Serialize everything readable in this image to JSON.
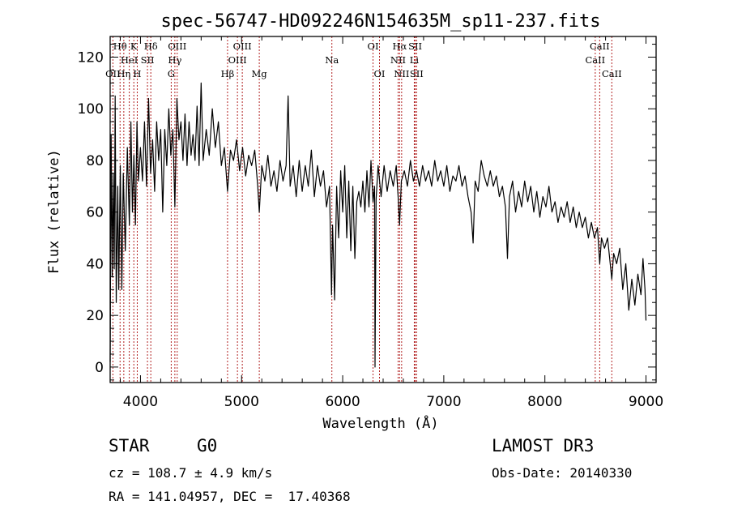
{
  "chart_data": {
    "type": "line",
    "title": "spec-56747-HD092246N154635M_sp11-237.fits",
    "xlabel": "Wavelength (Å)",
    "ylabel": "Flux (relative)",
    "xlim": [
      3700,
      9100
    ],
    "ylim": [
      -6,
      128
    ],
    "x_ticks": [
      4000,
      5000,
      6000,
      7000,
      8000,
      9000
    ],
    "y_ticks": [
      0,
      20,
      40,
      60,
      80,
      100,
      120
    ],
    "series": [
      {
        "name": "flux",
        "points": [
          [
            3700,
            2
          ],
          [
            3710,
            90
          ],
          [
            3720,
            35
          ],
          [
            3730,
            75
          ],
          [
            3740,
            38
          ],
          [
            3750,
            105
          ],
          [
            3760,
            25
          ],
          [
            3775,
            70
          ],
          [
            3785,
            30
          ],
          [
            3800,
            78
          ],
          [
            3815,
            30
          ],
          [
            3830,
            75
          ],
          [
            3850,
            45
          ],
          [
            3870,
            85
          ],
          [
            3890,
            55
          ],
          [
            3905,
            95
          ],
          [
            3920,
            60
          ],
          [
            3935,
            82
          ],
          [
            3950,
            55
          ],
          [
            3965,
            95
          ],
          [
            3980,
            72
          ],
          [
            4000,
            85
          ],
          [
            4020,
            72
          ],
          [
            4040,
            95
          ],
          [
            4060,
            70
          ],
          [
            4080,
            104
          ],
          [
            4100,
            75
          ],
          [
            4120,
            88
          ],
          [
            4140,
            68
          ],
          [
            4160,
            95
          ],
          [
            4180,
            80
          ],
          [
            4200,
            92
          ],
          [
            4220,
            60
          ],
          [
            4240,
            92
          ],
          [
            4260,
            78
          ],
          [
            4280,
            100
          ],
          [
            4300,
            82
          ],
          [
            4320,
            92
          ],
          [
            4340,
            62
          ],
          [
            4360,
            104
          ],
          [
            4380,
            88
          ],
          [
            4400,
            95
          ],
          [
            4420,
            80
          ],
          [
            4440,
            98
          ],
          [
            4460,
            78
          ],
          [
            4480,
            95
          ],
          [
            4500,
            82
          ],
          [
            4520,
            90
          ],
          [
            4540,
            80
          ],
          [
            4560,
            101
          ],
          [
            4580,
            78
          ],
          [
            4600,
            110
          ],
          [
            4620,
            80
          ],
          [
            4650,
            92
          ],
          [
            4680,
            82
          ],
          [
            4710,
            100
          ],
          [
            4740,
            85
          ],
          [
            4770,
            95
          ],
          [
            4800,
            78
          ],
          [
            4830,
            85
          ],
          [
            4861,
            68
          ],
          [
            4890,
            84
          ],
          [
            4920,
            80
          ],
          [
            4950,
            88
          ],
          [
            4980,
            76
          ],
          [
            5010,
            85
          ],
          [
            5040,
            74
          ],
          [
            5070,
            82
          ],
          [
            5100,
            78
          ],
          [
            5130,
            84
          ],
          [
            5160,
            70
          ],
          [
            5175,
            60
          ],
          [
            5200,
            78
          ],
          [
            5230,
            72
          ],
          [
            5260,
            82
          ],
          [
            5290,
            70
          ],
          [
            5320,
            76
          ],
          [
            5350,
            68
          ],
          [
            5380,
            80
          ],
          [
            5410,
            72
          ],
          [
            5440,
            78
          ],
          [
            5460,
            105
          ],
          [
            5480,
            70
          ],
          [
            5510,
            78
          ],
          [
            5540,
            66
          ],
          [
            5570,
            80
          ],
          [
            5600,
            68
          ],
          [
            5630,
            78
          ],
          [
            5660,
            70
          ],
          [
            5690,
            84
          ],
          [
            5720,
            66
          ],
          [
            5750,
            78
          ],
          [
            5780,
            70
          ],
          [
            5810,
            76
          ],
          [
            5840,
            62
          ],
          [
            5870,
            70
          ],
          [
            5890,
            28
          ],
          [
            5900,
            55
          ],
          [
            5920,
            26
          ],
          [
            5940,
            70
          ],
          [
            5960,
            50
          ],
          [
            5980,
            76
          ],
          [
            6000,
            60
          ],
          [
            6020,
            78
          ],
          [
            6040,
            50
          ],
          [
            6060,
            72
          ],
          [
            6080,
            45
          ],
          [
            6100,
            70
          ],
          [
            6120,
            42
          ],
          [
            6140,
            64
          ],
          [
            6160,
            68
          ],
          [
            6180,
            62
          ],
          [
            6200,
            72
          ],
          [
            6220,
            60
          ],
          [
            6240,
            76
          ],
          [
            6260,
            62
          ],
          [
            6280,
            80
          ],
          [
            6300,
            64
          ],
          [
            6315,
            70
          ],
          [
            6320,
            0
          ],
          [
            6330,
            65
          ],
          [
            6350,
            78
          ],
          [
            6380,
            66
          ],
          [
            6410,
            78
          ],
          [
            6440,
            68
          ],
          [
            6470,
            76
          ],
          [
            6500,
            70
          ],
          [
            6530,
            78
          ],
          [
            6550,
            65
          ],
          [
            6563,
            55
          ],
          [
            6580,
            72
          ],
          [
            6610,
            76
          ],
          [
            6640,
            70
          ],
          [
            6670,
            80
          ],
          [
            6700,
            72
          ],
          [
            6730,
            76
          ],
          [
            6760,
            70
          ],
          [
            6790,
            78
          ],
          [
            6820,
            72
          ],
          [
            6850,
            76
          ],
          [
            6880,
            70
          ],
          [
            6910,
            80
          ],
          [
            6940,
            72
          ],
          [
            6970,
            76
          ],
          [
            7000,
            70
          ],
          [
            7030,
            78
          ],
          [
            7060,
            68
          ],
          [
            7090,
            74
          ],
          [
            7120,
            72
          ],
          [
            7150,
            78
          ],
          [
            7180,
            70
          ],
          [
            7210,
            74
          ],
          [
            7240,
            66
          ],
          [
            7270,
            60
          ],
          [
            7290,
            48
          ],
          [
            7310,
            72
          ],
          [
            7340,
            68
          ],
          [
            7370,
            80
          ],
          [
            7400,
            74
          ],
          [
            7430,
            70
          ],
          [
            7460,
            76
          ],
          [
            7490,
            70
          ],
          [
            7520,
            74
          ],
          [
            7550,
            66
          ],
          [
            7580,
            70
          ],
          [
            7610,
            62
          ],
          [
            7630,
            42
          ],
          [
            7650,
            66
          ],
          [
            7680,
            72
          ],
          [
            7710,
            60
          ],
          [
            7740,
            68
          ],
          [
            7770,
            62
          ],
          [
            7800,
            72
          ],
          [
            7830,
            64
          ],
          [
            7860,
            70
          ],
          [
            7890,
            60
          ],
          [
            7920,
            68
          ],
          [
            7950,
            58
          ],
          [
            7980,
            66
          ],
          [
            8010,
            62
          ],
          [
            8040,
            70
          ],
          [
            8070,
            60
          ],
          [
            8100,
            64
          ],
          [
            8130,
            56
          ],
          [
            8160,
            62
          ],
          [
            8190,
            58
          ],
          [
            8220,
            64
          ],
          [
            8250,
            56
          ],
          [
            8280,
            62
          ],
          [
            8310,
            54
          ],
          [
            8340,
            60
          ],
          [
            8370,
            54
          ],
          [
            8400,
            58
          ],
          [
            8430,
            50
          ],
          [
            8460,
            56
          ],
          [
            8490,
            50
          ],
          [
            8520,
            54
          ],
          [
            8542,
            40
          ],
          [
            8560,
            50
          ],
          [
            8590,
            46
          ],
          [
            8620,
            50
          ],
          [
            8662,
            34
          ],
          [
            8680,
            44
          ],
          [
            8710,
            40
          ],
          [
            8740,
            46
          ],
          [
            8770,
            30
          ],
          [
            8800,
            40
          ],
          [
            8830,
            22
          ],
          [
            8860,
            34
          ],
          [
            8890,
            24
          ],
          [
            8920,
            36
          ],
          [
            8950,
            28
          ],
          [
            8970,
            42
          ],
          [
            8990,
            30
          ],
          [
            9000,
            18
          ]
        ]
      }
    ],
    "spectral_lines": [
      {
        "label": "OII",
        "wl": 3727,
        "row": 3
      },
      {
        "label": "Hθ",
        "wl": 3798,
        "row": 1
      },
      {
        "label": "Hη",
        "wl": 3835,
        "row": 3
      },
      {
        "label": "HeI",
        "wl": 3889,
        "row": 2
      },
      {
        "label": "K",
        "wl": 3934,
        "row": 1
      },
      {
        "label": "H",
        "wl": 3968,
        "row": 3
      },
      {
        "label": "SII",
        "wl": 4069,
        "row": 2
      },
      {
        "label": "Hδ",
        "wl": 4102,
        "row": 1
      },
      {
        "label": "G",
        "wl": 4304,
        "row": 3
      },
      {
        "label": "Hγ",
        "wl": 4340,
        "row": 2
      },
      {
        "label": "OIII",
        "wl": 4363,
        "row": 1
      },
      {
        "label": "Hβ",
        "wl": 4861,
        "row": 3
      },
      {
        "label": "OIII",
        "wl": 4959,
        "row": 2
      },
      {
        "label": "OIII",
        "wl": 5007,
        "row": 1
      },
      {
        "label": "Mg",
        "wl": 5175,
        "row": 3
      },
      {
        "label": "Na",
        "wl": 5893,
        "row": 2
      },
      {
        "label": "OI",
        "wl": 6300,
        "row": 1
      },
      {
        "label": "OI",
        "wl": 6364,
        "row": 3
      },
      {
        "label": "NII",
        "wl": 6548,
        "row": 2
      },
      {
        "label": "Hα",
        "wl": 6563,
        "row": 1
      },
      {
        "label": "NII",
        "wl": 6583,
        "row": 3
      },
      {
        "label": "Li",
        "wl": 6708,
        "row": 2
      },
      {
        "label": "SII",
        "wl": 6717,
        "row": 1
      },
      {
        "label": "SII",
        "wl": 6731,
        "row": 3
      },
      {
        "label": "CaII",
        "wl": 8498,
        "row": 2
      },
      {
        "label": "CaII",
        "wl": 8542,
        "row": 1
      },
      {
        "label": "CaII",
        "wl": 8662,
        "row": 3
      }
    ],
    "colors": {
      "line": "#000000",
      "marker": "#b22222"
    }
  },
  "info": {
    "class": "STAR",
    "subclass": "G0",
    "survey": "LAMOST DR3",
    "redshift": "cz = 108.7 ± 4.9 km/s",
    "obs_date": "Obs-Date: 20140330",
    "coords": "RA = 141.04957, DEC =  17.40368"
  }
}
